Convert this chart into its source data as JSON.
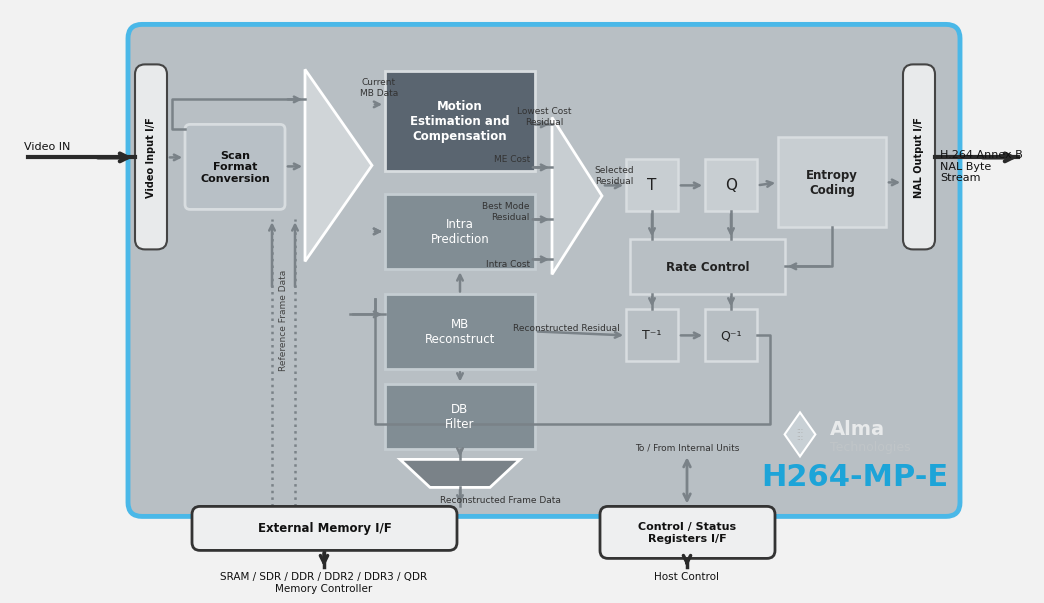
{
  "bg_outer": "#f2f2f2",
  "bg_main": "#b8bfc4",
  "border_blue": "#4ab8e8",
  "block_dark_blue": "#5a6570",
  "block_med": "#818d94",
  "block_light": "#c4cacd",
  "block_white": "#f0f2f3",
  "arrow_gray": "#7a8288",
  "arrow_dark": "#2a2a2a",
  "text_dark": "#1a1a1a",
  "text_white": "#ffffff",
  "text_blue": "#1da4d8",
  "text_gray": "#555555",
  "title": "H264-MP-E",
  "vid_in": "Video Input I/F",
  "nal_out": "NAL Output I/F",
  "sfc": "Scan\nFormat\nConversion",
  "mec": "Motion\nEstimation and\nCompensation",
  "ip": "Intra\nPrediction",
  "mbr": "MB\nReconstruct",
  "dbf": "DB\nFilter",
  "t_lbl": "T",
  "q_lbl": "Q",
  "ec": "Entropy\nCoding",
  "rc": "Rate Control",
  "tinv": "T⁻¹",
  "qinv": "Q⁻¹",
  "em": "External Memory I/F",
  "cs": "Control / Status\nRegisters I/F",
  "cur_mb": "Current\nMB Data",
  "lowest_cost": "Lowest Cost\nResidual",
  "me_cost": "ME Cost",
  "best_mode": "Best Mode\nResidual",
  "intra_cost": "Intra Cost",
  "sel_res": "Selected\nResidual",
  "recon_res": "Reconstructed Residual",
  "recon_fd": "Reconstructed Frame Data",
  "ref_fd": "Reference Frame Data",
  "to_from": "To / From Internal Units",
  "vid_in_lbl": "Video IN",
  "nal_lbl": "H.264 Annex B\nNAL Byte\nStream",
  "mem_lbl": "SRAM / SDR / DDR / DDR2 / DDR3 / QDR\nMemory Controller",
  "host_lbl": "Host Control",
  "alma": "Alma",
  "tech": "Technologies"
}
